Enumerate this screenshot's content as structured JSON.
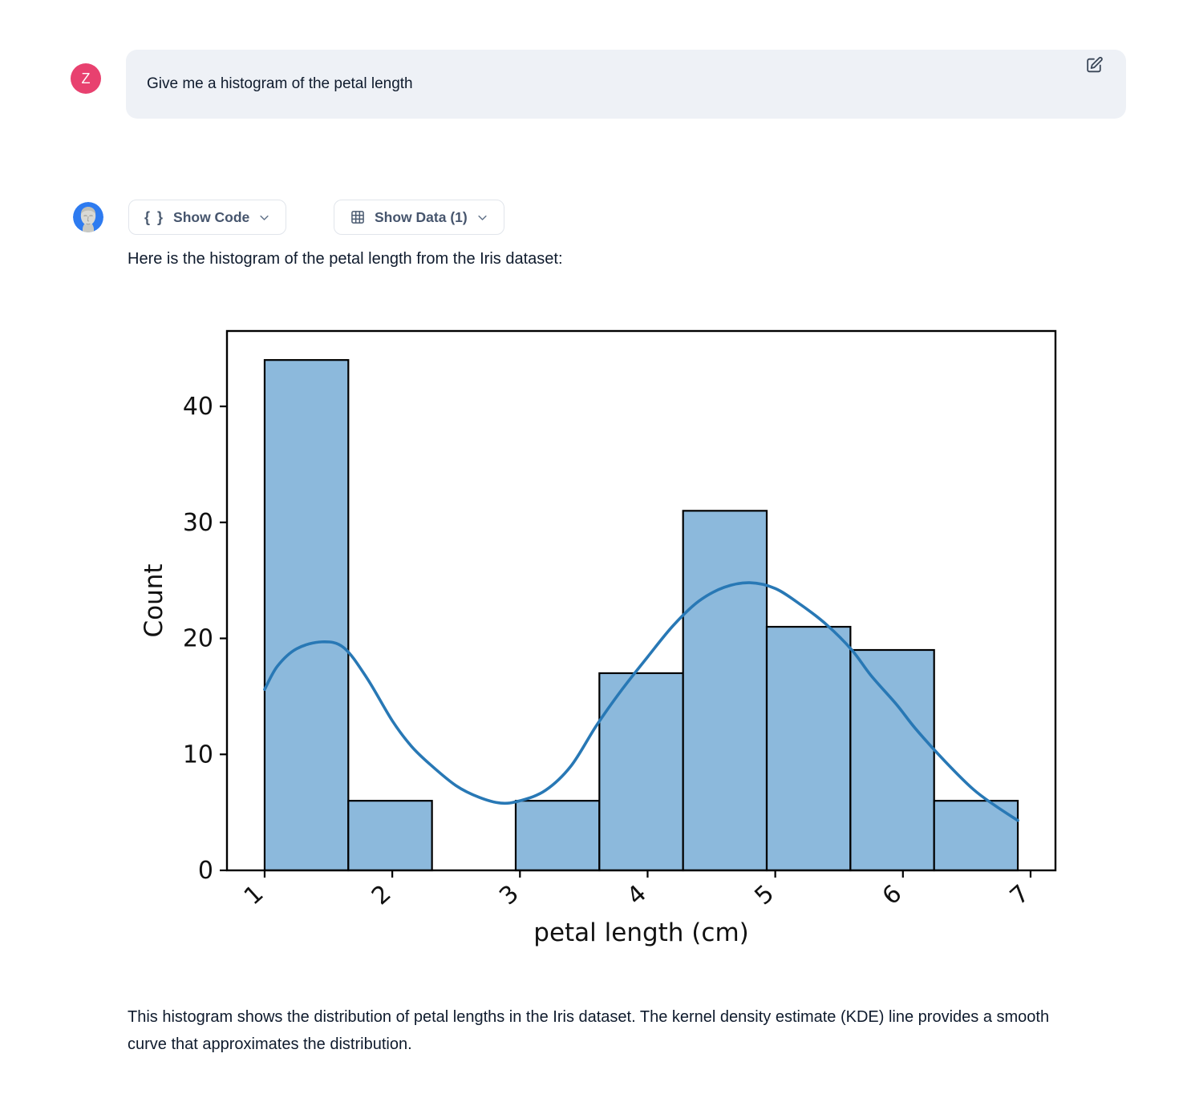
{
  "user_message": {
    "avatar_initial": "Z",
    "avatar_color": "#e8416f",
    "text": "Give me a histogram of the petal length",
    "edit_icon": "pencil-square-icon"
  },
  "assistant": {
    "avatar": "statue-avatar",
    "avatar_ring_color": "#2e7bf0",
    "toolbar": {
      "show_code_label": "Show Code",
      "show_code_icon": "braces-icon",
      "show_code_glyph": "{ }",
      "show_data_label": "Show Data (1)",
      "show_data_icon": "table-icon",
      "dropdown_icon": "chevron-down-icon"
    },
    "intro_text": "Here is the histogram of the petal length from the Iris dataset:",
    "caption": "This histogram shows the distribution of petal lengths in the Iris dataset. The kernel density estimate (KDE) line provides a smooth curve that approximates the distribution."
  },
  "chart_data": {
    "type": "bar",
    "variant": "histogram_with_kde",
    "title": "",
    "xlabel": "petal length (cm)",
    "ylabel": "Count",
    "xlim": [
      0.705,
      7.195
    ],
    "ylim": [
      0,
      46.5
    ],
    "x_ticks": [
      1,
      2,
      3,
      4,
      5,
      6,
      7
    ],
    "x_tick_rotation": -42,
    "y_ticks": [
      0,
      10,
      20,
      30,
      40
    ],
    "grid": false,
    "legend": false,
    "bin_edges": [
      1.0,
      1.6556,
      2.3111,
      2.9667,
      3.6222,
      4.2778,
      4.9333,
      5.5889,
      6.2444,
      6.9
    ],
    "counts": [
      44,
      6,
      0,
      6,
      17,
      31,
      21,
      19,
      6
    ],
    "kde": [
      [
        1.0,
        15.6
      ],
      [
        1.1,
        17.6
      ],
      [
        1.25,
        19.1
      ],
      [
        1.45,
        19.7
      ],
      [
        1.62,
        19.2
      ],
      [
        1.8,
        16.6
      ],
      [
        2.0,
        12.9
      ],
      [
        2.15,
        10.7
      ],
      [
        2.3,
        9.1
      ],
      [
        2.5,
        7.3
      ],
      [
        2.68,
        6.3
      ],
      [
        2.85,
        5.8
      ],
      [
        3.0,
        6.0
      ],
      [
        3.2,
        6.9
      ],
      [
        3.4,
        9.0
      ],
      [
        3.6,
        12.5
      ],
      [
        3.8,
        15.6
      ],
      [
        4.0,
        18.4
      ],
      [
        4.2,
        21.1
      ],
      [
        4.4,
        23.2
      ],
      [
        4.6,
        24.4
      ],
      [
        4.8,
        24.8
      ],
      [
        5.0,
        24.3
      ],
      [
        5.2,
        22.9
      ],
      [
        5.4,
        21.2
      ],
      [
        5.6,
        19.0
      ],
      [
        5.75,
        16.8
      ],
      [
        5.95,
        14.3
      ],
      [
        6.1,
        12.2
      ],
      [
        6.33,
        9.4
      ],
      [
        6.55,
        7.0
      ],
      [
        6.72,
        5.6
      ],
      [
        6.9,
        4.3
      ]
    ],
    "colors": {
      "bar_fill": "#8cb9dc",
      "bar_edge": "#000000",
      "kde_line": "#2878b5",
      "axis": "#000000",
      "tick_label": "#111111"
    }
  }
}
